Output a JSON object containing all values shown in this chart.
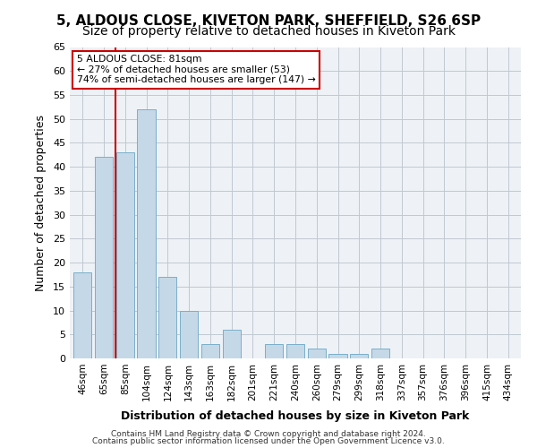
{
  "title1": "5, ALDOUS CLOSE, KIVETON PARK, SHEFFIELD, S26 6SP",
  "title2": "Size of property relative to detached houses in Kiveton Park",
  "xlabel": "Distribution of detached houses by size in Kiveton Park",
  "ylabel": "Number of detached properties",
  "categories": [
    "46sqm",
    "65sqm",
    "85sqm",
    "104sqm",
    "124sqm",
    "143sqm",
    "163sqm",
    "182sqm",
    "201sqm",
    "221sqm",
    "240sqm",
    "260sqm",
    "279sqm",
    "299sqm",
    "318sqm",
    "337sqm",
    "357sqm",
    "376sqm",
    "396sqm",
    "415sqm",
    "434sqm"
  ],
  "bar_values": [
    18,
    42,
    43,
    52,
    17,
    10,
    3,
    6,
    0,
    3,
    3,
    2,
    1,
    1,
    2,
    0,
    0,
    0,
    0,
    0,
    0
  ],
  "bar_color": "#c5d8e8",
  "bar_edge_color": "#7aafc8",
  "vline_color": "#cc0000",
  "vline_x": 1.55,
  "annotation_title": "5 ALDOUS CLOSE: 81sqm",
  "annotation_line2": "← 27% of detached houses are smaller (53)",
  "annotation_line3": "74% of semi-detached houses are larger (147) →",
  "annotation_box_color": "#cc0000",
  "ylim": [
    0,
    65
  ],
  "yticks": [
    0,
    5,
    10,
    15,
    20,
    25,
    30,
    35,
    40,
    45,
    50,
    55,
    60,
    65
  ],
  "footer1": "Contains HM Land Registry data © Crown copyright and database right 2024.",
  "footer2": "Contains public sector information licensed under the Open Government Licence v3.0.",
  "bg_color": "#eef2f6",
  "grid_color": "#c0c8d0",
  "title1_fontsize": 11,
  "title2_fontsize": 10,
  "xlabel_fontsize": 9,
  "ylabel_fontsize": 9
}
